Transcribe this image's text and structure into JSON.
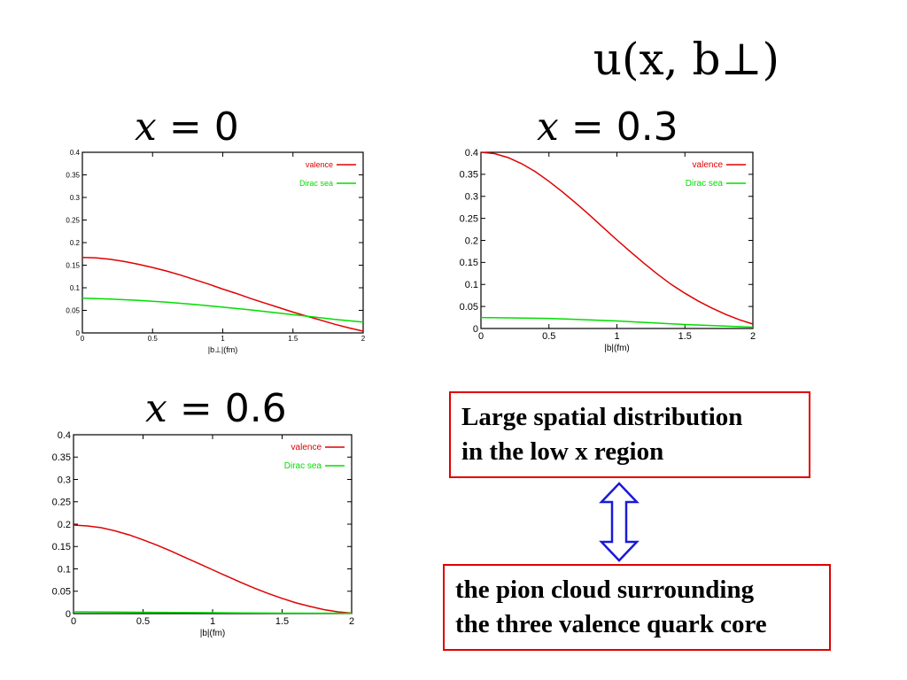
{
  "page": {
    "main_title": "u(x, b⊥)"
  },
  "chart_data": [
    {
      "type": "line",
      "title_var": "x",
      "title_eq": "=",
      "title_val": "0",
      "xlabel": "|b⊥|(fm)",
      "xlim": [
        0,
        2
      ],
      "ylim": [
        0,
        0.4
      ],
      "xticks": [
        "0",
        "0.5",
        "1",
        "1.5",
        "2"
      ],
      "yticks": [
        "0",
        "0.05",
        "0.1",
        "0.15",
        "0.2",
        "0.25",
        "0.3",
        "0.35",
        "0.4"
      ],
      "legend_position": "top-right",
      "series": [
        {
          "name": "valence",
          "color": "#e00000",
          "x": [
            0,
            0.1,
            0.2,
            0.3,
            0.4,
            0.5,
            0.6,
            0.7,
            0.8,
            0.9,
            1.0,
            1.1,
            1.2,
            1.3,
            1.4,
            1.5,
            1.6,
            1.7,
            1.8,
            1.9,
            2.0
          ],
          "y": [
            0.167,
            0.166,
            0.163,
            0.158,
            0.152,
            0.145,
            0.137,
            0.128,
            0.118,
            0.108,
            0.097,
            0.087,
            0.076,
            0.066,
            0.056,
            0.046,
            0.037,
            0.028,
            0.019,
            0.011,
            0.004
          ]
        },
        {
          "name": "Dirac sea",
          "color": "#00dd00",
          "x": [
            0,
            0.2,
            0.4,
            0.6,
            0.8,
            1.0,
            1.2,
            1.4,
            1.6,
            1.8,
            2.0
          ],
          "y": [
            0.077,
            0.075,
            0.072,
            0.068,
            0.063,
            0.057,
            0.051,
            0.044,
            0.037,
            0.03,
            0.024
          ]
        }
      ]
    },
    {
      "type": "line",
      "title_var": "x",
      "title_eq": "=",
      "title_val": "0.3",
      "xlabel": "|b|(fm)",
      "xlim": [
        0,
        2
      ],
      "ylim": [
        0,
        0.4
      ],
      "xticks": [
        "0",
        "0.5",
        "1",
        "1.5",
        "2"
      ],
      "yticks": [
        "0",
        "0.05",
        "0.1",
        "0.15",
        "0.2",
        "0.25",
        "0.3",
        "0.35",
        "0.4"
      ],
      "legend_position": "top-right",
      "series": [
        {
          "name": "valence",
          "color": "#e00000",
          "x": [
            0,
            0.1,
            0.2,
            0.3,
            0.4,
            0.5,
            0.6,
            0.7,
            0.8,
            0.9,
            1.0,
            1.1,
            1.2,
            1.3,
            1.4,
            1.5,
            1.6,
            1.7,
            1.8,
            1.9,
            2.0
          ],
          "y": [
            0.4,
            0.397,
            0.388,
            0.374,
            0.356,
            0.334,
            0.31,
            0.284,
            0.257,
            0.229,
            0.201,
            0.174,
            0.148,
            0.123,
            0.1,
            0.08,
            0.062,
            0.046,
            0.032,
            0.02,
            0.01
          ]
        },
        {
          "name": "Dirac sea",
          "color": "#00dd00",
          "x": [
            0,
            0.5,
            1.0,
            1.5,
            2.0
          ],
          "y": [
            0.025,
            0.023,
            0.017,
            0.009,
            0.003
          ]
        }
      ]
    },
    {
      "type": "line",
      "title_var": "x",
      "title_eq": "=",
      "title_val": "0.6",
      "xlabel": "|b|(fm)",
      "xlim": [
        0,
        2
      ],
      "ylim": [
        0,
        0.4
      ],
      "xticks": [
        "0",
        "0.5",
        "1",
        "1.5",
        "2"
      ],
      "yticks": [
        "0",
        "0.05",
        "0.1",
        "0.15",
        "0.2",
        "0.25",
        "0.3",
        "0.35",
        "0.4"
      ],
      "legend_position": "top-right",
      "series": [
        {
          "name": "valence",
          "color": "#e00000",
          "x": [
            0,
            0.1,
            0.2,
            0.3,
            0.4,
            0.5,
            0.6,
            0.7,
            0.8,
            0.9,
            1.0,
            1.1,
            1.2,
            1.3,
            1.4,
            1.5,
            1.6,
            1.7,
            1.8,
            1.9,
            2.0
          ],
          "y": [
            0.198,
            0.196,
            0.192,
            0.185,
            0.176,
            0.165,
            0.153,
            0.14,
            0.126,
            0.112,
            0.098,
            0.084,
            0.07,
            0.057,
            0.045,
            0.034,
            0.024,
            0.016,
            0.009,
            0.004,
            0.001
          ]
        },
        {
          "name": "Dirac sea",
          "color": "#00dd00",
          "x": [
            0,
            0.5,
            1.0,
            1.5,
            2.0
          ],
          "y": [
            0.004,
            0.003,
            0.002,
            0.001,
            0.0005
          ]
        }
      ]
    }
  ],
  "notes": {
    "box1_line1": "Large spatial distribution",
    "box1_line2": "in the low x region",
    "box2_line1": "the pion cloud  surrounding",
    "box2_line2": "the three valence quark core",
    "arrow_color": "#1a1ad8",
    "border_color": "#e00000"
  }
}
